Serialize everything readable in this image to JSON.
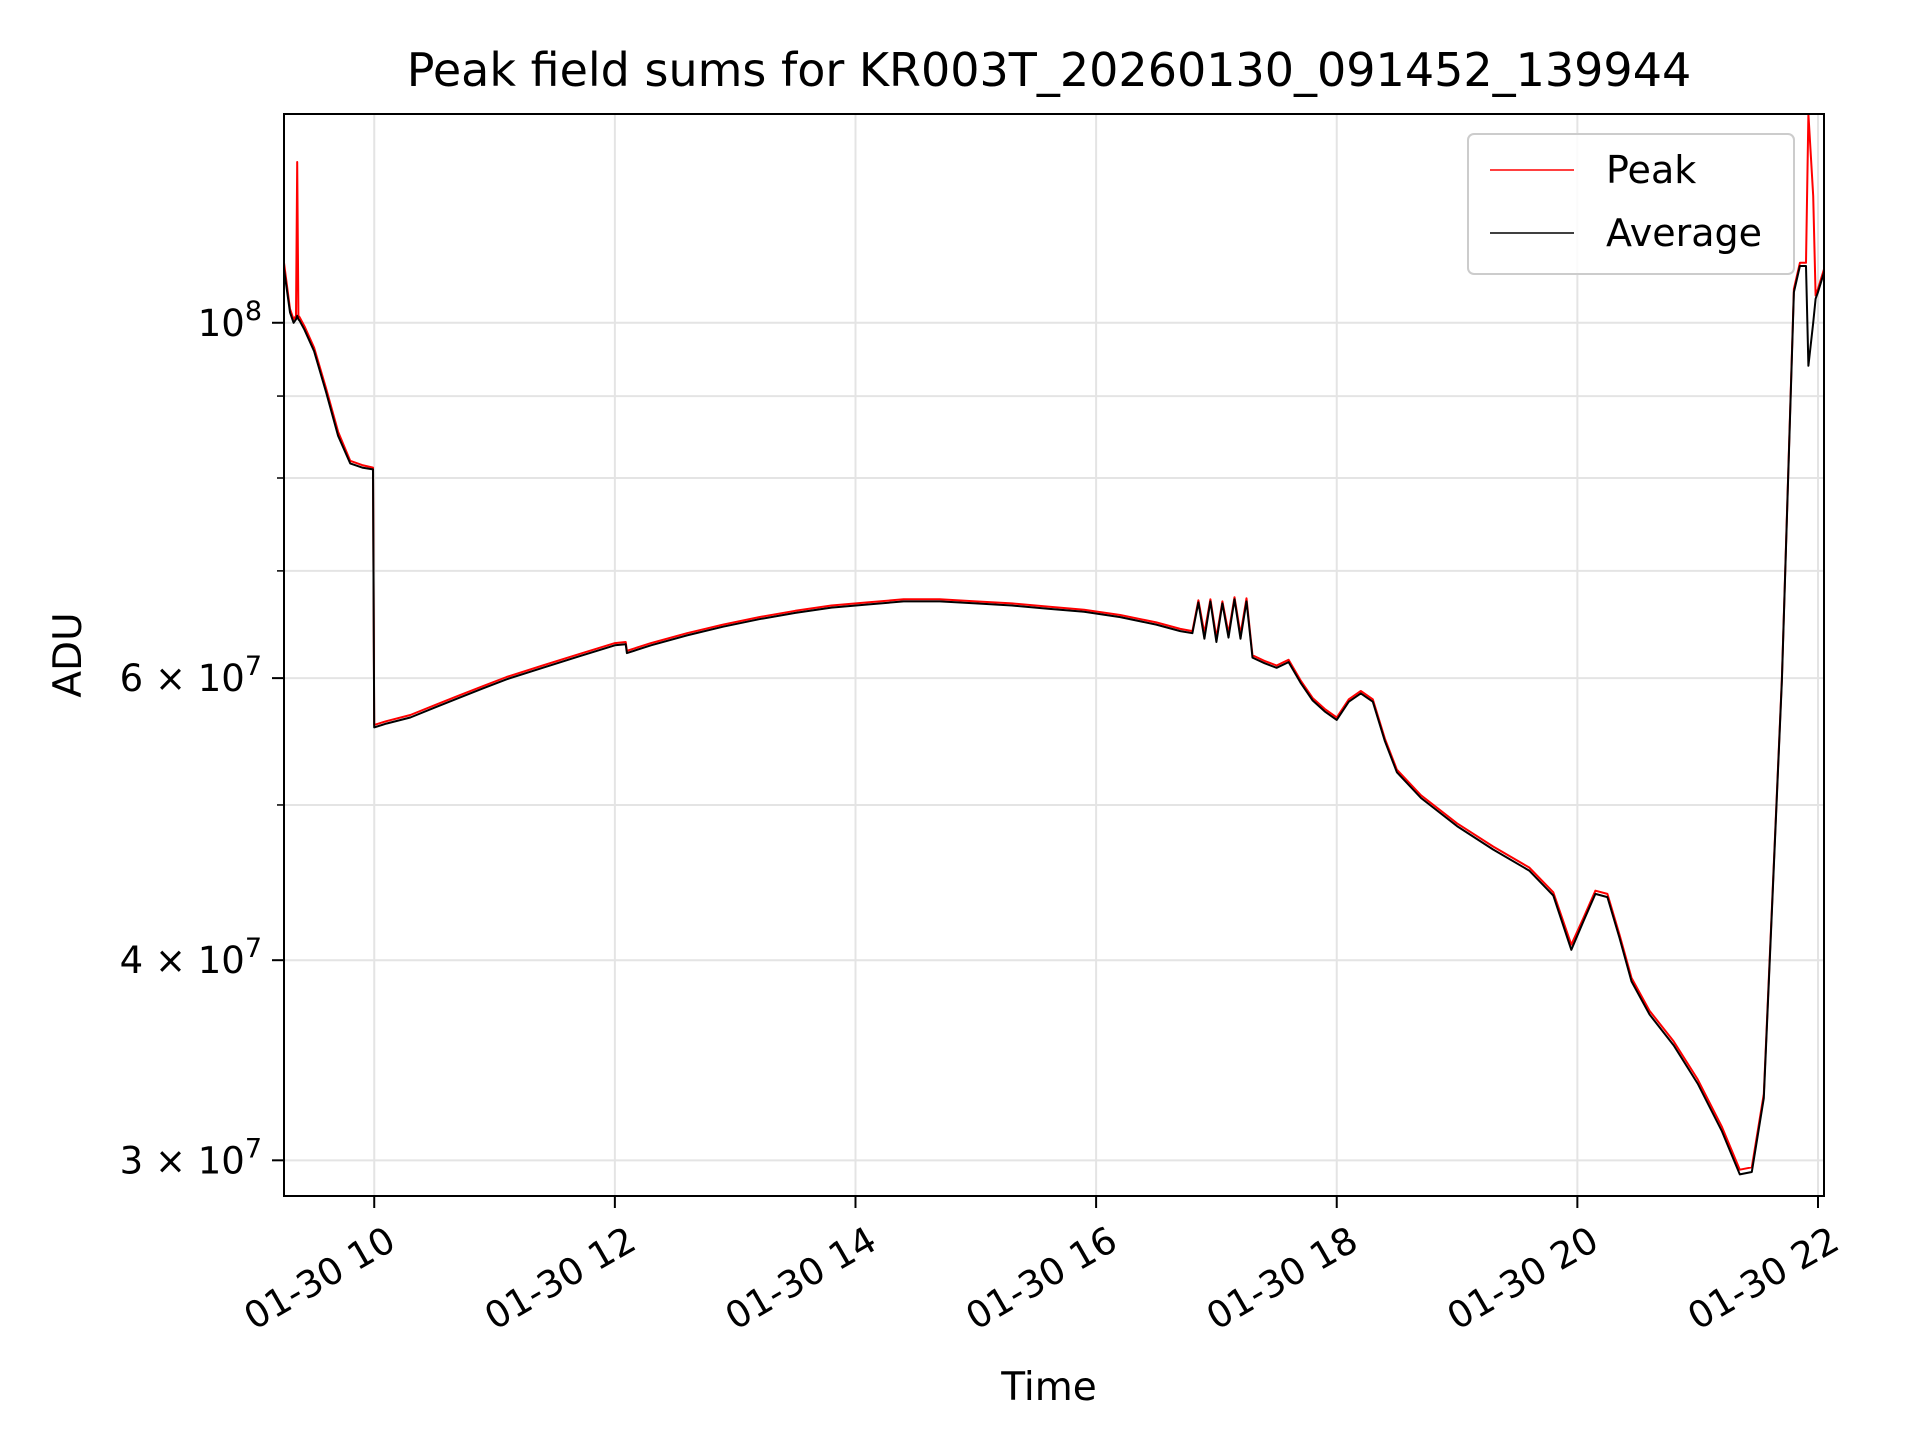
{
  "chart_data": {
    "type": "line",
    "title": "Peak field sums for KR003T_20260130_091452_139944",
    "xlabel": "Time",
    "ylabel": "ADU",
    "yscale": "log",
    "xlim": [
      9.25,
      22.05
    ],
    "ylim": [
      28500000,
      135000000
    ],
    "grid": true,
    "legend_position": "top-right",
    "x_unit": "hour of day, 2026-01-30",
    "x_ticks": [
      {
        "value": 10,
        "label": "01-30 10"
      },
      {
        "value": 12,
        "label": "01-30 12"
      },
      {
        "value": 14,
        "label": "01-30 14"
      },
      {
        "value": 16,
        "label": "01-30 16"
      },
      {
        "value": 18,
        "label": "01-30 18"
      },
      {
        "value": 20,
        "label": "01-30 20"
      },
      {
        "value": 22,
        "label": "01-30 22"
      }
    ],
    "y_ticks_major": [
      {
        "value": 100000000,
        "base": "10",
        "exp": "8"
      },
      {
        "value": 60000000,
        "base": "6 × 10",
        "exp": "7"
      },
      {
        "value": 40000000,
        "base": "4 × 10",
        "exp": "7"
      },
      {
        "value": 30000000,
        "base": "3 × 10",
        "exp": "7"
      }
    ],
    "y_gridlines_minor": [
      50000000,
      70000000,
      80000000,
      90000000
    ],
    "series": [
      {
        "name": "Peak",
        "color": "#ff0000",
        "x": [
          9.25,
          9.3,
          9.33,
          9.35,
          9.36,
          9.37,
          9.38,
          9.42,
          9.5,
          9.6,
          9.7,
          9.8,
          9.9,
          9.99,
          10.0,
          10.1,
          10.3,
          10.5,
          10.7,
          10.9,
          11.1,
          11.4,
          11.7,
          12.0,
          12.09,
          12.1,
          12.3,
          12.6,
          12.9,
          13.2,
          13.5,
          13.8,
          14.1,
          14.4,
          14.7,
          15.0,
          15.3,
          15.6,
          15.9,
          16.2,
          16.5,
          16.7,
          16.8,
          16.85,
          16.9,
          16.95,
          17.0,
          17.05,
          17.1,
          17.15,
          17.2,
          17.25,
          17.3,
          17.4,
          17.5,
          17.6,
          17.7,
          17.8,
          17.9,
          18.0,
          18.1,
          18.2,
          18.3,
          18.4,
          18.5,
          18.7,
          19.0,
          19.3,
          19.6,
          19.8,
          19.95,
          20.05,
          20.15,
          20.25,
          20.35,
          20.45,
          20.6,
          20.8,
          21.0,
          21.2,
          21.35,
          21.45,
          21.55,
          21.7,
          21.8,
          21.85,
          21.9,
          21.92,
          21.96,
          21.98,
          22.0,
          22.05
        ],
        "values": [
          109000000,
          102000000,
          100500000,
          101000000,
          126000000,
          101000000,
          100800000,
          99500000,
          96500000,
          91000000,
          85500000,
          82000000,
          81500000,
          81200000,
          56100000,
          56400000,
          56900000,
          57700000,
          58500000,
          59300000,
          60100000,
          61100000,
          62100000,
          63100000,
          63200000,
          62400000,
          63100000,
          64000000,
          64800000,
          65500000,
          66100000,
          66600000,
          66900000,
          67200000,
          67200000,
          67000000,
          66800000,
          66500000,
          66200000,
          65700000,
          65000000,
          64400000,
          64200000,
          67100000,
          64000000,
          67200000,
          63600000,
          67000000,
          64000000,
          67400000,
          63900000,
          67300000,
          62000000,
          61500000,
          61100000,
          61600000,
          59800000,
          58300000,
          57400000,
          56700000,
          58200000,
          58900000,
          58200000,
          55000000,
          52600000,
          50700000,
          48700000,
          47100000,
          45700000,
          44100000,
          40900000,
          42500000,
          44200000,
          44000000,
          41500000,
          39000000,
          37200000,
          35600000,
          33700000,
          31500000,
          29600000,
          29700000,
          33000000,
          60000000,
          105000000,
          109000000,
          109000000,
          135000000,
          120000000,
          104000000,
          105000000,
          108000000
        ]
      },
      {
        "name": "Average",
        "color": "#000000",
        "x": [
          9.25,
          9.3,
          9.33,
          9.35,
          9.36,
          9.37,
          9.38,
          9.42,
          9.5,
          9.6,
          9.7,
          9.8,
          9.9,
          9.99,
          10.0,
          10.1,
          10.3,
          10.5,
          10.7,
          10.9,
          11.1,
          11.4,
          11.7,
          12.0,
          12.09,
          12.1,
          12.3,
          12.6,
          12.9,
          13.2,
          13.5,
          13.8,
          14.1,
          14.4,
          14.7,
          15.0,
          15.3,
          15.6,
          15.9,
          16.2,
          16.5,
          16.7,
          16.8,
          16.85,
          16.9,
          16.95,
          17.0,
          17.05,
          17.1,
          17.15,
          17.2,
          17.25,
          17.3,
          17.4,
          17.5,
          17.6,
          17.7,
          17.8,
          17.9,
          18.0,
          18.1,
          18.2,
          18.3,
          18.4,
          18.5,
          18.7,
          19.0,
          19.3,
          19.6,
          19.8,
          19.95,
          20.05,
          20.15,
          20.25,
          20.35,
          20.45,
          20.6,
          20.8,
          21.0,
          21.2,
          21.35,
          21.45,
          21.55,
          21.7,
          21.8,
          21.85,
          21.9,
          21.92,
          21.96,
          21.98,
          22.0,
          22.05
        ],
        "values": [
          108000000,
          101500000,
          100000000,
          100500000,
          101000000,
          100500000,
          100300000,
          99000000,
          96000000,
          90500000,
          85000000,
          81700000,
          81200000,
          81000000,
          55900000,
          56200000,
          56700000,
          57500000,
          58300000,
          59100000,
          59900000,
          60900000,
          61900000,
          62900000,
          63000000,
          62200000,
          62900000,
          63800000,
          64600000,
          65300000,
          65900000,
          66400000,
          66700000,
          67000000,
          67000000,
          66800000,
          66600000,
          66300000,
          66000000,
          65500000,
          64800000,
          64200000,
          64000000,
          66900000,
          63500000,
          67000000,
          63200000,
          66800000,
          63600000,
          67200000,
          63500000,
          67000000,
          61800000,
          61300000,
          60900000,
          61400000,
          59600000,
          58100000,
          57200000,
          56500000,
          58000000,
          58700000,
          58000000,
          54800000,
          52400000,
          50500000,
          48500000,
          46900000,
          45500000,
          43900000,
          40600000,
          42300000,
          44000000,
          43800000,
          41300000,
          38800000,
          37000000,
          35400000,
          33500000,
          31300000,
          29400000,
          29500000,
          32800000,
          59800000,
          104500000,
          108500000,
          108500000,
          94000000,
          100000000,
          103500000,
          104500000,
          107500000
        ]
      }
    ]
  }
}
